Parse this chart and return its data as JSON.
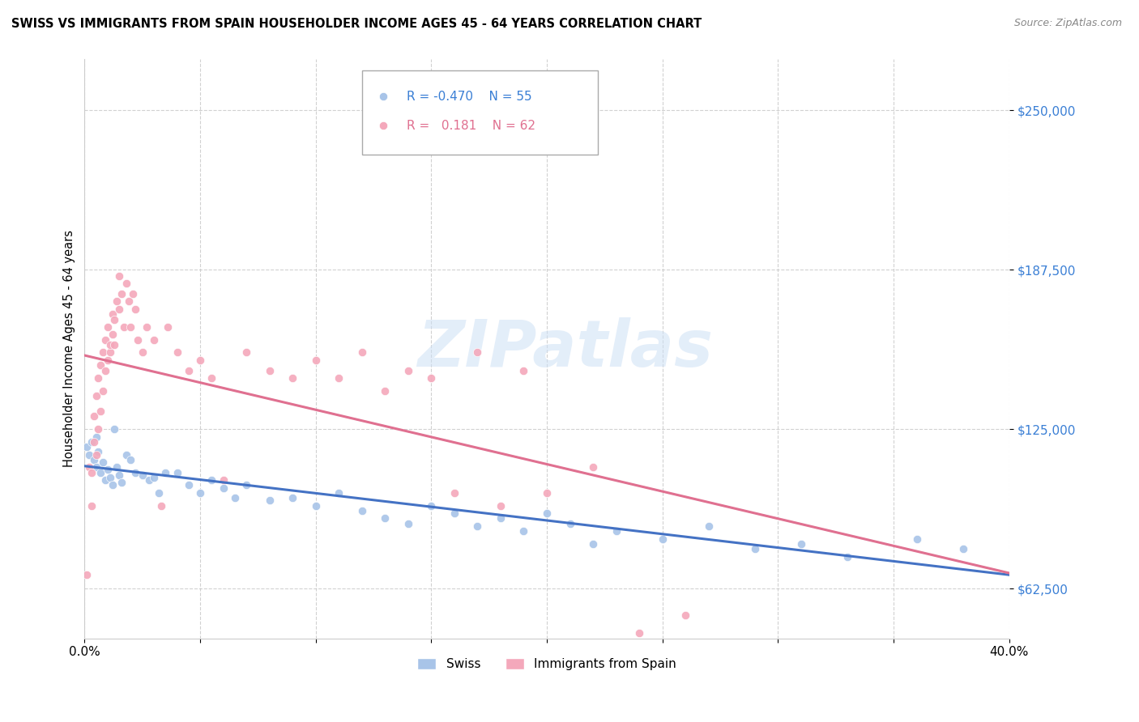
{
  "title": "SWISS VS IMMIGRANTS FROM SPAIN HOUSEHOLDER INCOME AGES 45 - 64 YEARS CORRELATION CHART",
  "source": "Source: ZipAtlas.com",
  "ylabel": "Householder Income Ages 45 - 64 years",
  "xlim": [
    0.0,
    0.4
  ],
  "ylim": [
    43000,
    270000
  ],
  "yticks": [
    62500,
    125000,
    187500,
    250000
  ],
  "ytick_labels": [
    "$62,500",
    "$125,000",
    "$187,500",
    "$250,000"
  ],
  "xticks": [
    0.0,
    0.05,
    0.1,
    0.15,
    0.2,
    0.25,
    0.3,
    0.35,
    0.4
  ],
  "legend_r_swiss": "-0.470",
  "legend_n_swiss": "55",
  "legend_r_spain": "0.181",
  "legend_n_spain": "62",
  "swiss_color": "#a8c4e8",
  "spain_color": "#f4a8bb",
  "swiss_line_color": "#4472c4",
  "spain_line_color": "#e07090",
  "dashed_line_color": "#c8d8f0",
  "watermark_text": "ZIPatlas",
  "swiss_x": [
    0.001,
    0.002,
    0.003,
    0.004,
    0.005,
    0.005,
    0.006,
    0.007,
    0.008,
    0.009,
    0.01,
    0.011,
    0.012,
    0.013,
    0.014,
    0.015,
    0.016,
    0.018,
    0.02,
    0.022,
    0.025,
    0.028,
    0.03,
    0.032,
    0.035,
    0.04,
    0.045,
    0.05,
    0.055,
    0.06,
    0.065,
    0.07,
    0.08,
    0.09,
    0.1,
    0.11,
    0.12,
    0.13,
    0.14,
    0.15,
    0.16,
    0.17,
    0.18,
    0.19,
    0.2,
    0.21,
    0.22,
    0.23,
    0.25,
    0.27,
    0.29,
    0.31,
    0.33,
    0.36,
    0.38
  ],
  "swiss_y": [
    118000,
    115000,
    120000,
    113000,
    110000,
    122000,
    116000,
    108000,
    112000,
    105000,
    109000,
    106000,
    103000,
    125000,
    110000,
    107000,
    104000,
    115000,
    113000,
    108000,
    107000,
    105000,
    106000,
    100000,
    108000,
    108000,
    103000,
    100000,
    105000,
    102000,
    98000,
    103000,
    97000,
    98000,
    95000,
    100000,
    93000,
    90000,
    88000,
    95000,
    92000,
    87000,
    90000,
    85000,
    92000,
    88000,
    80000,
    85000,
    82000,
    87000,
    78000,
    80000,
    75000,
    82000,
    78000
  ],
  "spain_x": [
    0.001,
    0.002,
    0.003,
    0.003,
    0.004,
    0.004,
    0.005,
    0.005,
    0.006,
    0.006,
    0.007,
    0.007,
    0.008,
    0.008,
    0.009,
    0.009,
    0.01,
    0.01,
    0.011,
    0.011,
    0.012,
    0.012,
    0.013,
    0.013,
    0.014,
    0.015,
    0.015,
    0.016,
    0.017,
    0.018,
    0.019,
    0.02,
    0.021,
    0.022,
    0.023,
    0.025,
    0.027,
    0.03,
    0.033,
    0.036,
    0.04,
    0.045,
    0.05,
    0.055,
    0.06,
    0.07,
    0.08,
    0.09,
    0.1,
    0.11,
    0.12,
    0.13,
    0.14,
    0.15,
    0.16,
    0.17,
    0.18,
    0.19,
    0.2,
    0.22,
    0.24,
    0.26
  ],
  "spain_y": [
    68000,
    110000,
    108000,
    95000,
    120000,
    130000,
    115000,
    138000,
    125000,
    145000,
    132000,
    150000,
    140000,
    155000,
    148000,
    160000,
    152000,
    165000,
    155000,
    158000,
    162000,
    170000,
    168000,
    158000,
    175000,
    172000,
    185000,
    178000,
    165000,
    182000,
    175000,
    165000,
    178000,
    172000,
    160000,
    155000,
    165000,
    160000,
    95000,
    165000,
    155000,
    148000,
    152000,
    145000,
    105000,
    155000,
    148000,
    145000,
    152000,
    145000,
    155000,
    140000,
    148000,
    145000,
    100000,
    155000,
    95000,
    148000,
    100000,
    110000,
    45000,
    52000
  ]
}
